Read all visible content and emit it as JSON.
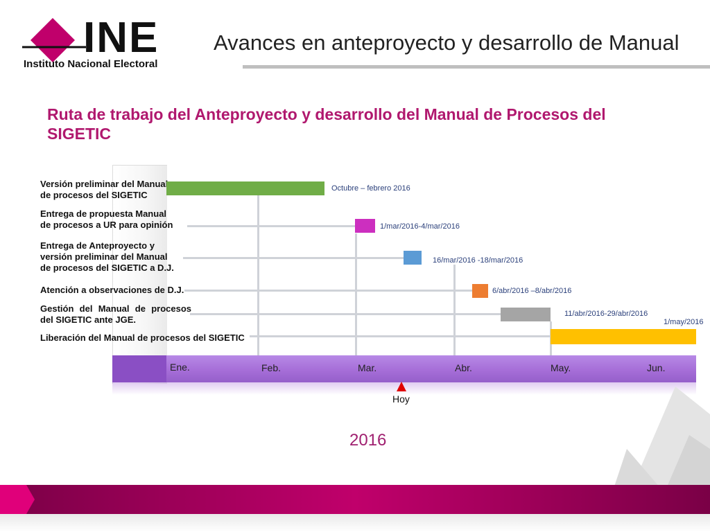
{
  "header": {
    "logo_text": "INE",
    "institution": "Instituto Nacional Electoral",
    "title": "Avances en anteproyecto y desarrollo de Manual"
  },
  "subtitle": "Ruta de trabajo del Anteproyecto y desarrollo del Manual de Procesos del SIGETIC",
  "timeline": {
    "months": [
      "Ene.",
      "Feb.",
      "Mar.",
      "Abr.",
      "May.",
      "Jun."
    ],
    "today_label": "Hoy",
    "year": "2016",
    "tasks": [
      {
        "label": "Versión preliminar del Manual de procesos del SIGETIC",
        "dates": "Octubre – febrero 2016",
        "color": "#70ad47"
      },
      {
        "label": "Entrega de propuesta  Manual de procesos a UR para opinión",
        "dates": "1/mar/2016-4/mar/2016",
        "color": "#cc2fbf"
      },
      {
        "label": "Entrega de Anteproyecto y versión preliminar del Manual de procesos del SIGETIC a D.J.",
        "dates": "16/mar/2016 -18/mar/2016",
        "color": "#5b9bd5"
      },
      {
        "label": "Atención a observaciones de D.J.",
        "dates": "6/abr/2016 –8/abr/2016",
        "color": "#ed7d31"
      },
      {
        "label": "Gestión  del  Manual  de  procesos del SIGETIC ante JGE.",
        "dates": "11/abr/2016-29/abr/2016",
        "color": "#a5a5a5"
      },
      {
        "label": "Liberación del Manual de procesos del SIGETIC",
        "dates": "1/may/2016",
        "color": "#ffc000"
      }
    ]
  },
  "colors": {
    "brand_magenta": "#c0006b",
    "subtitle_color": "#b0186e",
    "timeline_purple": "#a66ed8"
  }
}
